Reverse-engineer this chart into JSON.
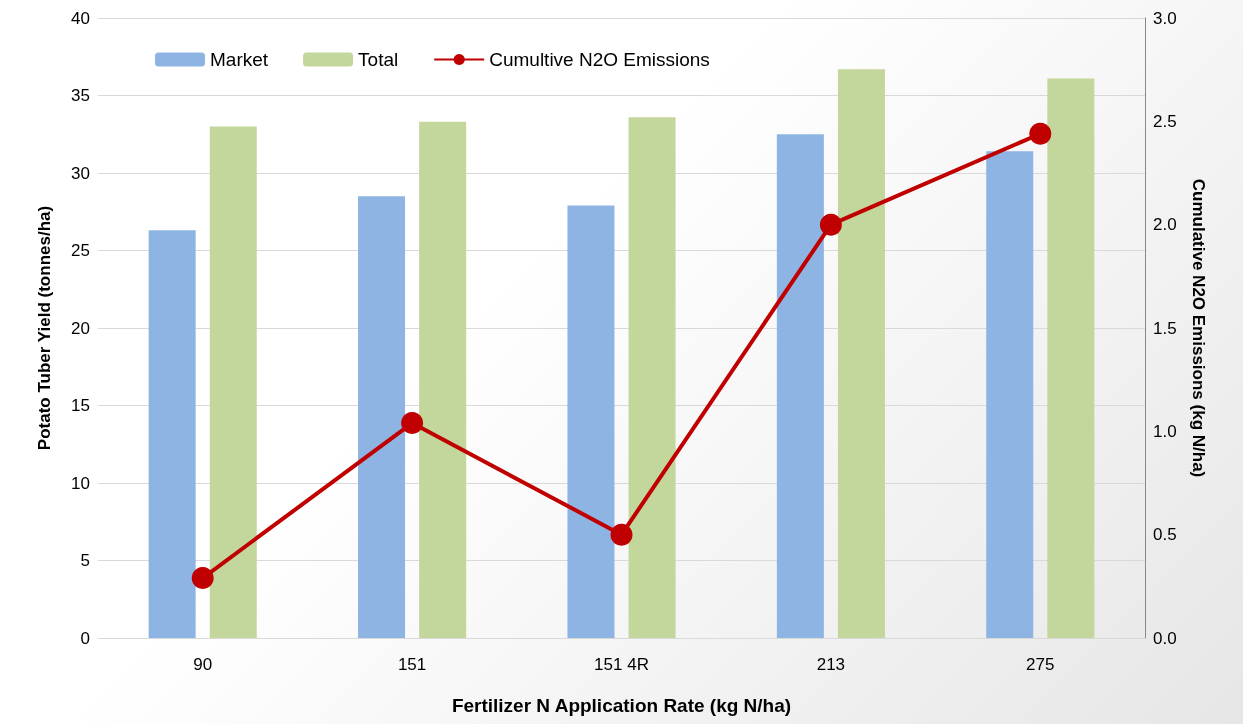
{
  "chart_data": {
    "type": "bar",
    "xlabel": "Fertilizer N Application Rate (kg N/ha)",
    "ylabel": "Potato Tuber Yield (tonnes/ha)",
    "y2label": "Cumulative N2O Emissions (kg N/ha)",
    "categories": [
      "90",
      "151",
      "151 4R",
      "213",
      "275"
    ],
    "series": [
      {
        "name": "Market",
        "color": "#8eb4e3",
        "values": [
          26.3,
          28.5,
          27.9,
          32.5,
          31.4
        ]
      },
      {
        "name": "Total",
        "color": "#c3d69b",
        "values": [
          33.0,
          33.3,
          33.6,
          36.7,
          36.1
        ]
      },
      {
        "name": "Cumultive N2O Emissions",
        "type": "line",
        "axis": "y2",
        "color": "#c00000",
        "values": [
          0.29,
          1.04,
          0.5,
          2.0,
          2.44
        ]
      }
    ],
    "ylim": [
      0,
      40
    ],
    "yticks": [
      0,
      5,
      10,
      15,
      20,
      25,
      30,
      35,
      40
    ],
    "y2lim": [
      0,
      3
    ],
    "y2ticks": [
      {
        "value": 0,
        "label": "0.0"
      },
      {
        "value": 0.5,
        "label": "0.5"
      },
      {
        "value": 1,
        "label": "1.0"
      },
      {
        "value": 1.5,
        "label": "1.5"
      },
      {
        "value": 2,
        "label": "2.0"
      },
      {
        "value": 2.5,
        "label": "2.5"
      },
      {
        "value": 3,
        "label": "3.0"
      }
    ],
    "grid": "y",
    "legend": "top left",
    "marker": "circle",
    "line_style": "solid"
  }
}
